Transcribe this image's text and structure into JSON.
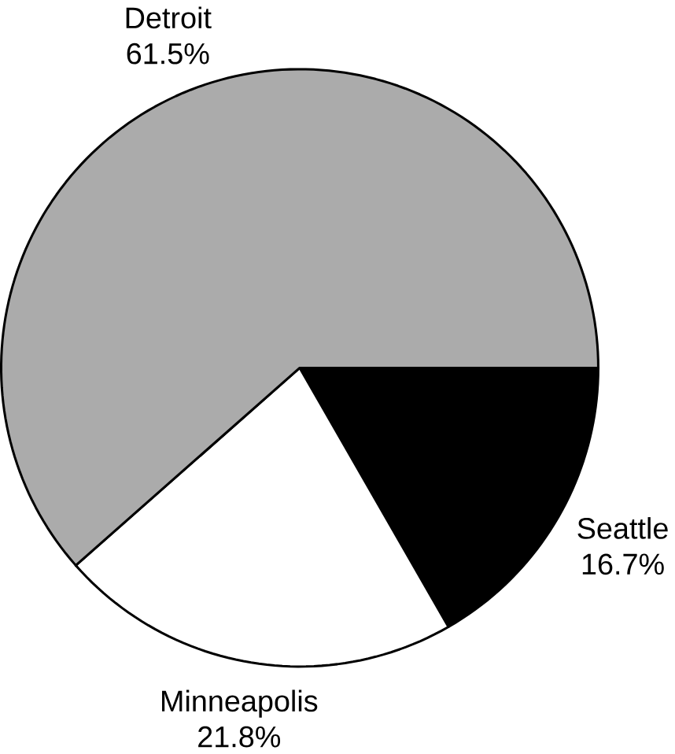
{
  "chart_data": {
    "type": "pie",
    "categories": [
      "Seattle",
      "Minneapolis",
      "Detroit"
    ],
    "values": [
      16.7,
      21.8,
      61.5
    ],
    "colors": [
      "#000000",
      "#ffffff",
      "#ababab"
    ],
    "value_labels": [
      "16.7%",
      "21.8%",
      "61.5%"
    ]
  }
}
